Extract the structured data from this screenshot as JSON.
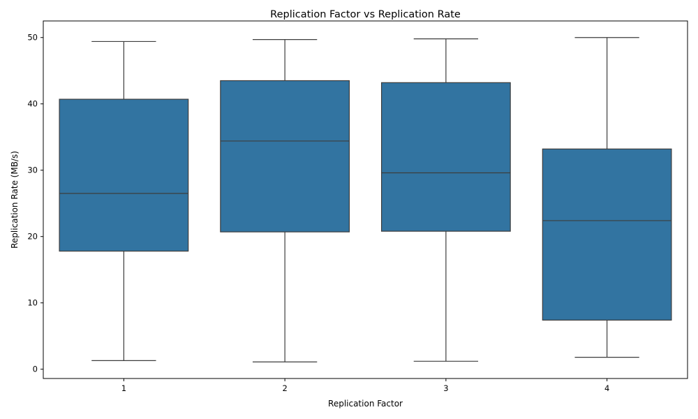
{
  "chart_data": {
    "type": "box",
    "title": "Replication Factor vs Replication Rate",
    "xlabel": "Replication Factor",
    "ylabel": "Replication Rate (MB/s)",
    "categories": [
      "1",
      "2",
      "3",
      "4"
    ],
    "boxes": [
      {
        "category": "1",
        "min": 1.3,
        "q1": 17.8,
        "median": 26.5,
        "q3": 40.7,
        "max": 49.4
      },
      {
        "category": "2",
        "min": 1.1,
        "q1": 20.7,
        "median": 34.4,
        "q3": 43.5,
        "max": 49.7
      },
      {
        "category": "3",
        "min": 1.2,
        "q1": 20.8,
        "median": 29.6,
        "q3": 43.2,
        "max": 49.8
      },
      {
        "category": "4",
        "min": 1.8,
        "q1": 7.4,
        "median": 22.4,
        "q3": 33.2,
        "max": 50.0
      }
    ],
    "ylim": [
      -1.4,
      52.5
    ],
    "yticks": [
      0,
      10,
      20,
      30,
      40,
      50
    ],
    "box_color": "#3274a1",
    "line_color": "#3d3d3d",
    "grid": false,
    "legend": false
  }
}
